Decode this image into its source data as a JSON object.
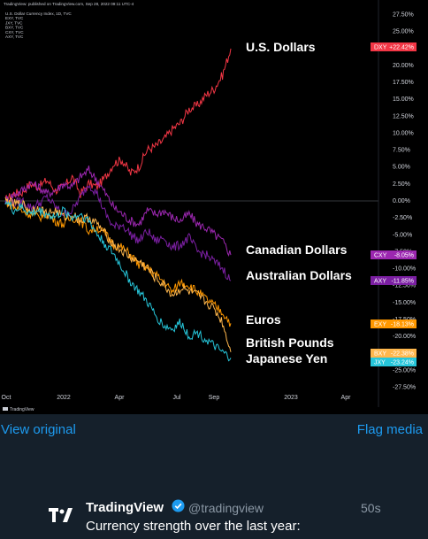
{
  "chart_header": {
    "published": "TradingView: published on TradingView.com, Sep 28, 2022 09:11 UTC-4",
    "lines": [
      "U.S. Dollar Currency Index, 1D, TVC",
      "EXY, TVC",
      "JXY, TVC",
      "BXY, TVC",
      "CXY, TVC",
      "AXY, TVC"
    ]
  },
  "watermark": "TradingView",
  "chart_data": {
    "type": "line",
    "x_ticks": [
      "Oct",
      "2022",
      "Apr",
      "Jul",
      "Sep",
      "2023",
      "Apr"
    ],
    "y_ticks": [
      "27.50%",
      "25.00%",
      "22.50%",
      "20.00%",
      "17.50%",
      "15.00%",
      "12.50%",
      "10.00%",
      "7.50%",
      "5.00%",
      "2.50%",
      "0.00%",
      "-2.50%",
      "-5.00%",
      "-7.50%",
      "-10.00%",
      "-12.50%",
      "-15.00%",
      "-17.50%",
      "-20.00%",
      "-22.50%",
      "-25.00%",
      "-27.50%"
    ],
    "y_range": [
      -27.5,
      27.5
    ],
    "grid": false,
    "series": [
      {
        "name": "DXY",
        "label": "U.S. Dollars",
        "value": "+22.42%",
        "color": "#f23645",
        "values": [
          0,
          1.0,
          1.2,
          2.5,
          2.0,
          3.0,
          1.5,
          2.0,
          3.5,
          1.0,
          2.5,
          2.0,
          3.5,
          5.5,
          6.0,
          4.0,
          5.0,
          7.5,
          8.0,
          9.0,
          10.5,
          11.5,
          13.5,
          14.0,
          15.5,
          16.5,
          18.5,
          22.42
        ]
      },
      {
        "name": "CXY",
        "label": "Canadian Dollars",
        "value": "-8.05%",
        "color": "#9c27b0",
        "values": [
          0,
          0.8,
          1.5,
          2.5,
          2.0,
          1.0,
          1.5,
          2.5,
          2.0,
          3.5,
          4.5,
          3.0,
          1.0,
          -1.0,
          -2.0,
          -3.0,
          -3.5,
          -1.5,
          -2.0,
          -1.5,
          -2.5,
          -3.0,
          -2.0,
          -3.5,
          -4.0,
          -5.0,
          -6.0,
          -8.05
        ]
      },
      {
        "name": "AXY",
        "label": "Australian Dollars",
        "value": "-11.85%",
        "color": "#7b1fa2",
        "values": [
          0,
          -0.5,
          0.0,
          -1.0,
          -0.5,
          0.5,
          -1.0,
          -2.0,
          -1.5,
          0.5,
          2.5,
          1.0,
          -2.0,
          -4.0,
          -3.5,
          -5.0,
          -6.0,
          -4.5,
          -6.0,
          -5.5,
          -7.0,
          -6.5,
          -5.5,
          -7.5,
          -8.0,
          -9.0,
          -10.0,
          -11.85
        ]
      },
      {
        "name": "EXY",
        "label": "Euros",
        "value": "-18.13%",
        "color": "#ff9800",
        "values": [
          0,
          -1.0,
          -1.5,
          -2.0,
          -2.5,
          -2.0,
          -3.0,
          -3.5,
          -2.5,
          -3.0,
          -4.5,
          -4.0,
          -5.0,
          -6.5,
          -7.0,
          -8.0,
          -9.5,
          -10.0,
          -11.0,
          -12.0,
          -13.5,
          -12.0,
          -12.5,
          -13.5,
          -14.5,
          -15.5,
          -16.5,
          -18.13
        ]
      },
      {
        "name": "BXY",
        "label": "British Pounds",
        "value": "-22.38%",
        "color": "#ffb74d",
        "values": [
          0,
          -0.5,
          -0.5,
          -1.5,
          -1.0,
          -2.0,
          -1.5,
          -2.5,
          -2.0,
          -3.0,
          -2.5,
          -3.5,
          -5.0,
          -6.5,
          -7.5,
          -8.5,
          -9.0,
          -10.0,
          -11.5,
          -12.5,
          -14.0,
          -13.0,
          -13.5,
          -14.0,
          -15.0,
          -16.0,
          -18.0,
          -22.38
        ]
      },
      {
        "name": "JXY",
        "label": "Japanese Yen",
        "value": "-23.24%",
        "color": "#26c6da",
        "values": [
          0,
          -1.5,
          -1.0,
          -2.0,
          -1.5,
          -2.0,
          -2.5,
          -1.5,
          -2.5,
          -2.0,
          -3.0,
          -5.0,
          -6.5,
          -8.0,
          -10.0,
          -12.0,
          -13.5,
          -15.0,
          -17.0,
          -18.5,
          -19.0,
          -18.0,
          -20.0,
          -19.5,
          -20.5,
          -21.5,
          -22.5,
          -23.24
        ]
      }
    ]
  },
  "links": {
    "view_original": "View original",
    "flag_media": "Flag media"
  },
  "tweet": {
    "author": "TradingView",
    "handle": "@tradingview",
    "time": "50s",
    "text": "Currency strength over the last year:"
  }
}
